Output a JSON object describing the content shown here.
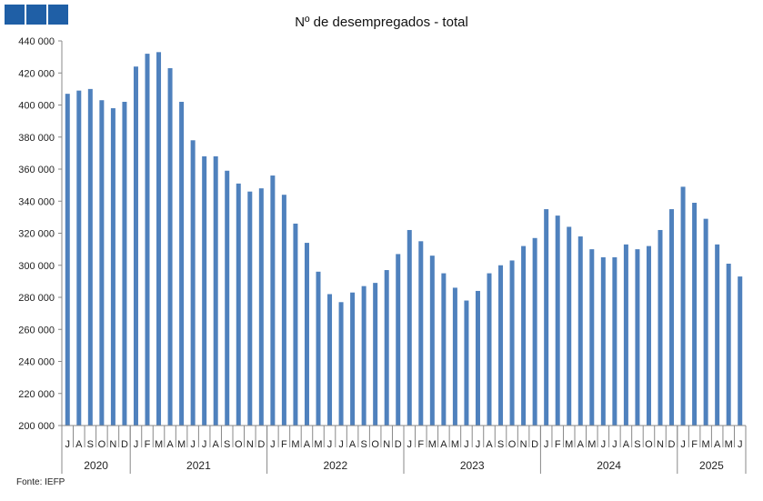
{
  "logo_icon": "three-blue-squares-logo",
  "bar_color": "#4f81bd",
  "source_label": "Fonte:  IEFP",
  "chart_data": {
    "type": "bar",
    "title": "Nº de desempregados - total",
    "xlabel": "",
    "ylabel": "",
    "ylim": [
      200000,
      440000
    ],
    "yticks": [
      "200 000",
      "220 000",
      "240 000",
      "260 000",
      "280 000",
      "300 000",
      "320 000",
      "340 000",
      "360 000",
      "380 000",
      "400 000",
      "420 000",
      "440 000"
    ],
    "grid": false,
    "categories": [
      "J",
      "A",
      "S",
      "O",
      "N",
      "D",
      "J",
      "F",
      "M",
      "A",
      "M",
      "J",
      "J",
      "A",
      "S",
      "O",
      "N",
      "D",
      "J",
      "F",
      "M",
      "A",
      "M",
      "J",
      "J",
      "A",
      "S",
      "O",
      "N",
      "D",
      "J",
      "F",
      "M",
      "A",
      "M",
      "J",
      "J",
      "A",
      "S",
      "O",
      "N",
      "D",
      "J",
      "F",
      "M",
      "A",
      "M",
      "J",
      "J",
      "A",
      "S",
      "O",
      "N",
      "D",
      "J",
      "F",
      "M",
      "A",
      "M",
      "J"
    ],
    "values": [
      407000,
      409000,
      410000,
      403000,
      398000,
      402000,
      424000,
      432000,
      433000,
      423000,
      402000,
      378000,
      368000,
      368000,
      359000,
      351000,
      346000,
      348000,
      356000,
      344000,
      326000,
      314000,
      296000,
      282000,
      277000,
      283000,
      287000,
      289000,
      297000,
      307000,
      322000,
      315000,
      306000,
      295000,
      286000,
      278000,
      284000,
      295000,
      300000,
      303000,
      312000,
      317000,
      335000,
      331000,
      324000,
      318000,
      310000,
      305000,
      305000,
      313000,
      310000,
      312000,
      322000,
      335000,
      349000,
      339000,
      329000,
      313000,
      301000,
      293000
    ],
    "years": [
      {
        "label": "2020",
        "count": 6
      },
      {
        "label": "2021",
        "count": 12
      },
      {
        "label": "2022",
        "count": 12
      },
      {
        "label": "2023",
        "count": 12
      },
      {
        "label": "2024",
        "count": 12
      },
      {
        "label": "2025",
        "count": 6
      }
    ]
  }
}
